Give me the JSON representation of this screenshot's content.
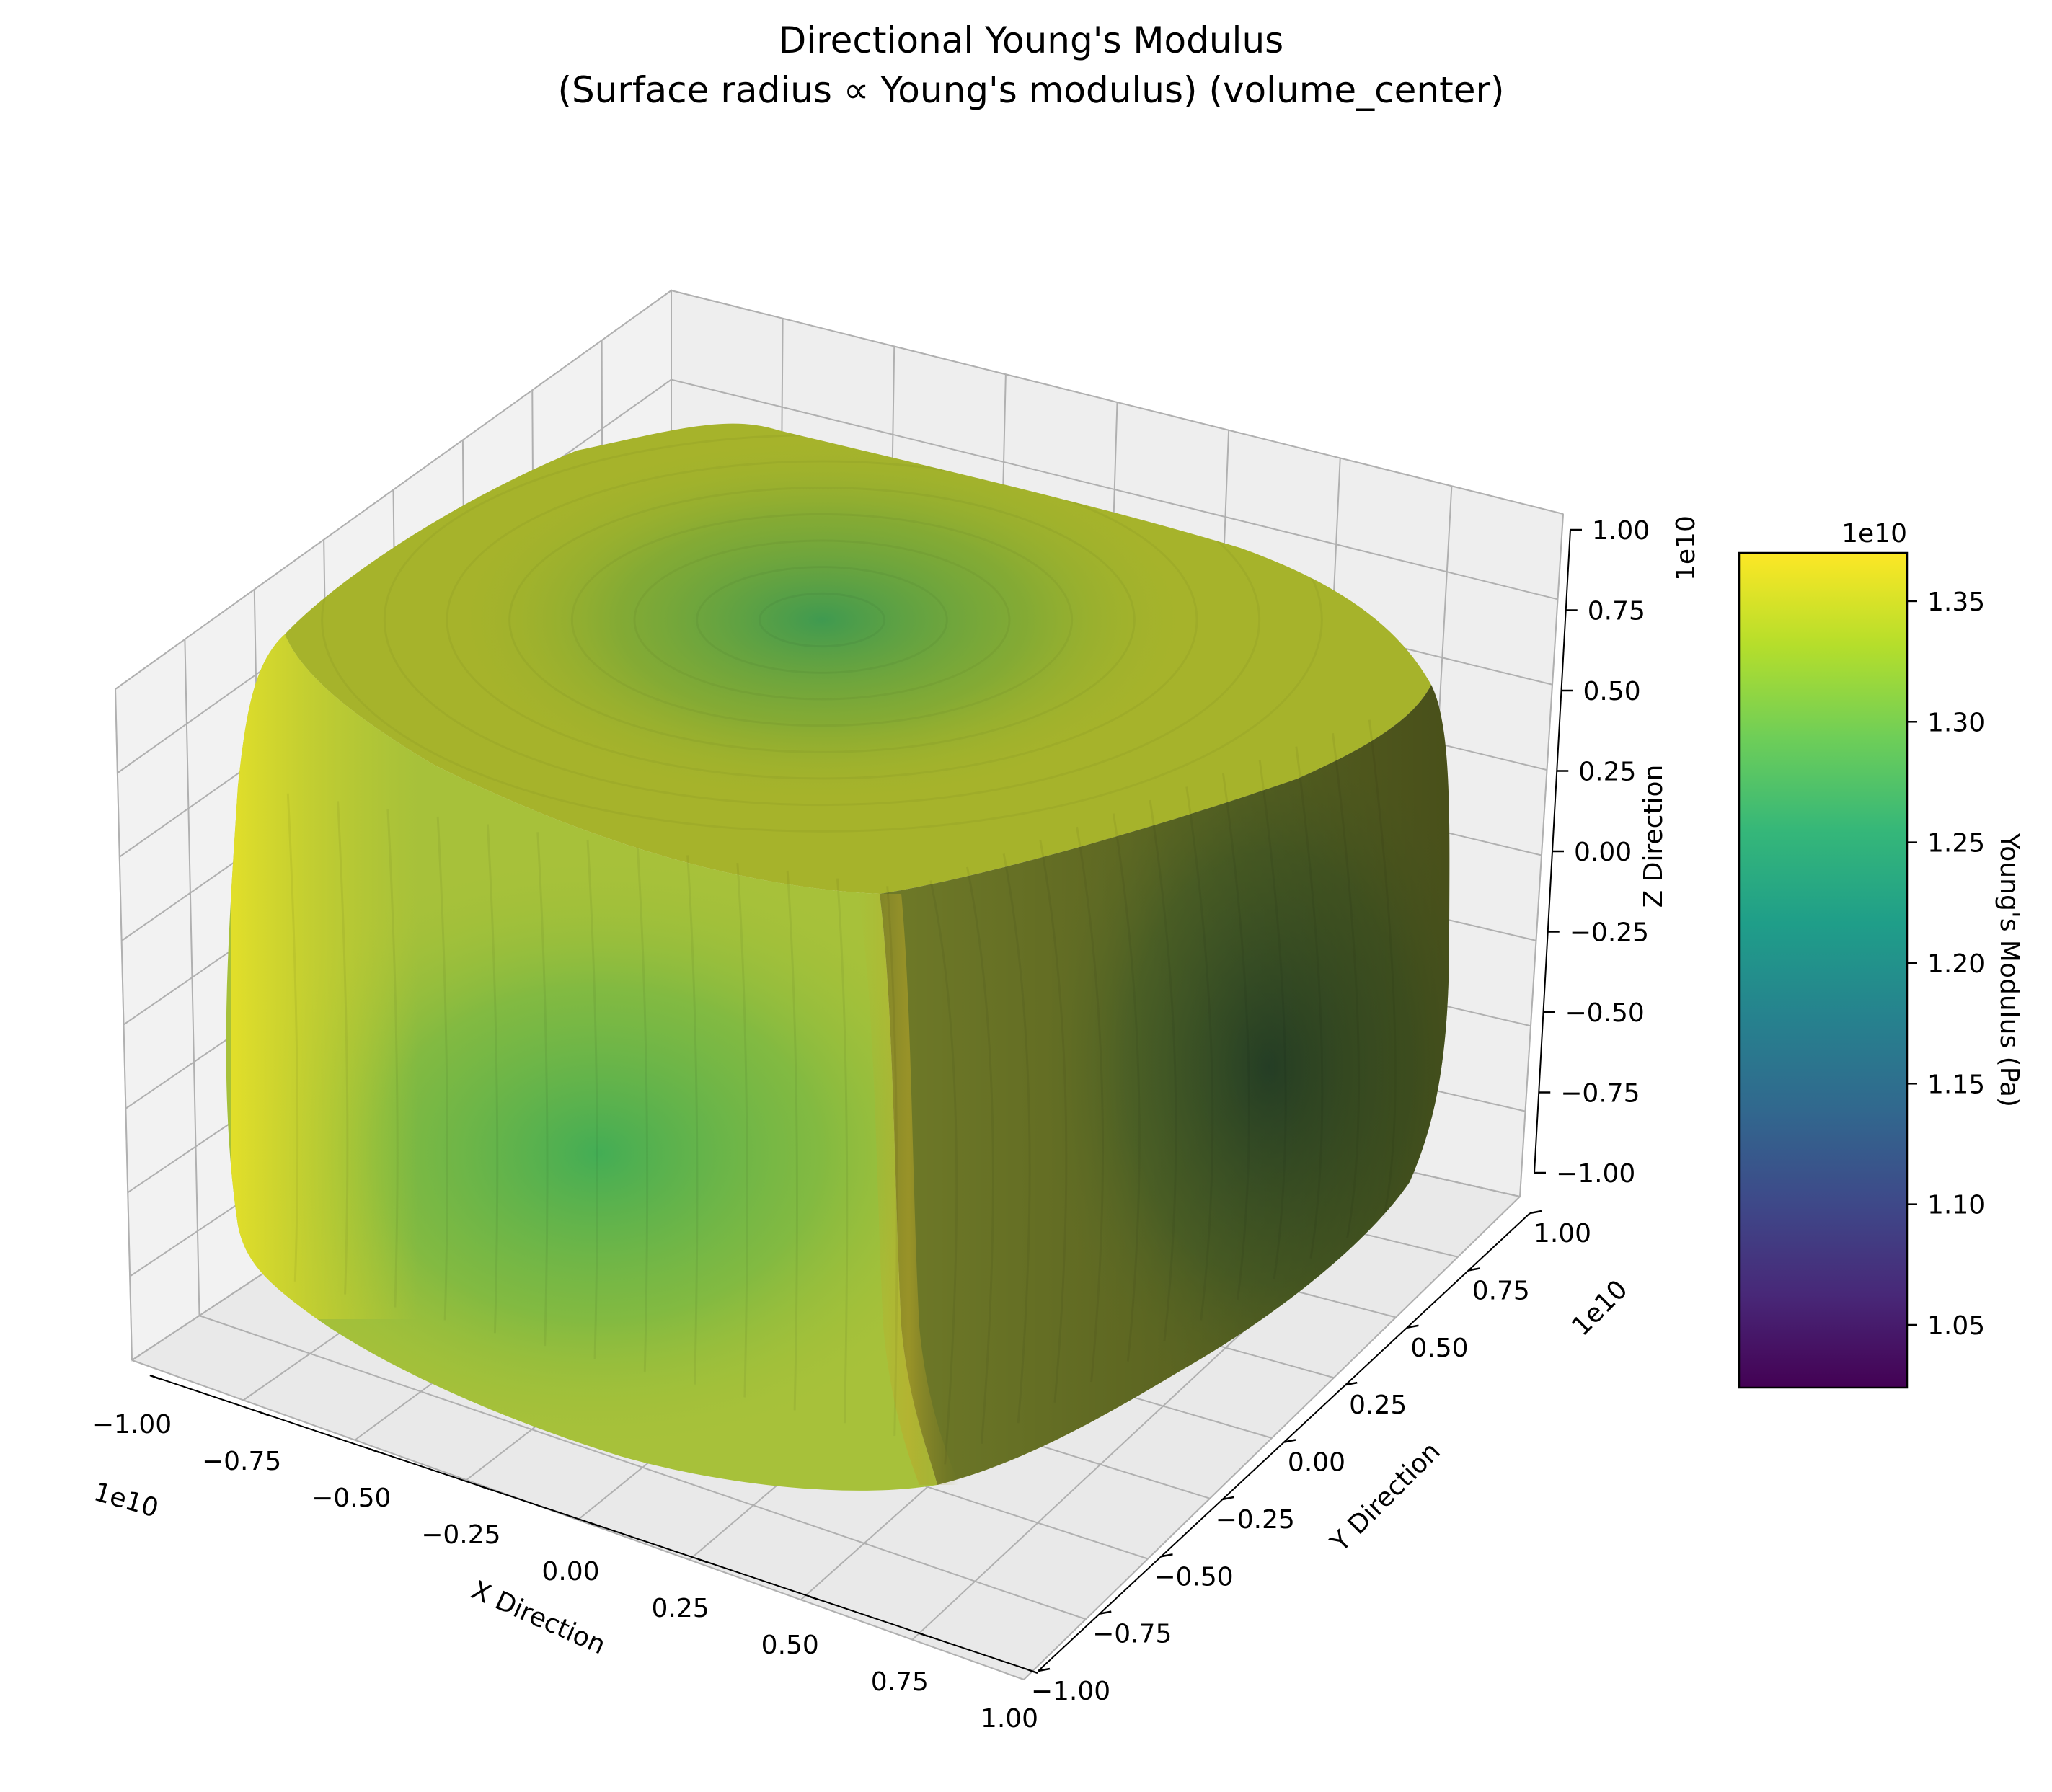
{
  "chart_data": {
    "type": "3d-surface",
    "title": "Directional Young's Modulus",
    "subtitle": "(Surface radius ∝ Young's modulus) (volume_center)",
    "axes": {
      "x": {
        "label": "X Direction",
        "offset_text": "1e10",
        "range": [
          -1.0,
          1.0
        ],
        "ticks": [
          "−1.00",
          "−0.75",
          "−0.50",
          "−0.25",
          "0.00",
          "0.25",
          "0.50",
          "0.75",
          "1.00"
        ]
      },
      "y": {
        "label": "Y Direction",
        "offset_text": "1e10",
        "range": [
          -1.0,
          1.0
        ],
        "ticks": [
          "−1.00",
          "−0.75",
          "−0.50",
          "−0.25",
          "0.00",
          "0.25",
          "0.50",
          "0.75",
          "1.00"
        ]
      },
      "z": {
        "label": "Z Direction",
        "offset_text": "1e10",
        "range": [
          -1.0,
          1.0
        ],
        "ticks": [
          "−1.00",
          "−0.75",
          "−0.50",
          "−0.25",
          "0.00",
          "0.25",
          "0.50",
          "0.75",
          "1.00"
        ]
      }
    },
    "surface": {
      "shape": "rounded cube (superellipsoid)",
      "min_modulus_pa": 12400000000.0,
      "max_modulus_pa": 13700000000.0,
      "low_regions": "face centers along principal axes",
      "high_regions": "body diagonals (corners)"
    },
    "colorbar": {
      "label": "Young's Modulus (Pa)",
      "offset_text": "1e10",
      "colormap": "viridis",
      "range": [
        1.024,
        1.37
      ],
      "ticks": [
        "1.05",
        "1.10",
        "1.15",
        "1.20",
        "1.25",
        "1.30",
        "1.35"
      ],
      "colors": [
        "#440154",
        "#482878",
        "#3e4989",
        "#31688e",
        "#26828e",
        "#1f9e89",
        "#35b779",
        "#6ece58",
        "#b5de2b",
        "#fde725"
      ]
    },
    "grid": true,
    "pane_color": "#f2f2f2"
  }
}
